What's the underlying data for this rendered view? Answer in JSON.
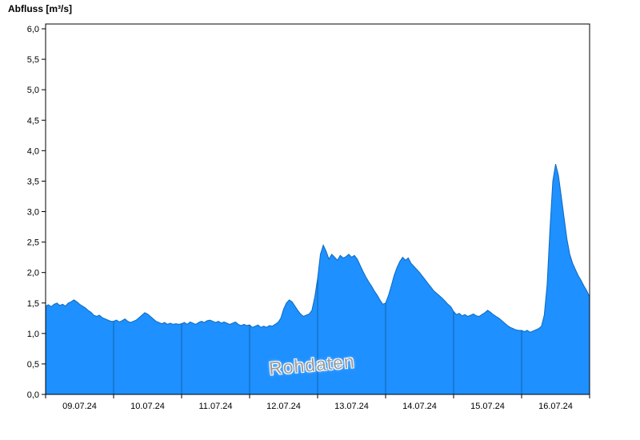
{
  "chart_data": {
    "type": "area",
    "title": "Abfluss [m³/s]",
    "ylabel": "Abfluss [m³/s]",
    "xlabel": "",
    "ylim": [
      0,
      6
    ],
    "y_tick_step": 0.5,
    "y_tick_labels": [
      "0,0",
      "0,5",
      "1,0",
      "1,5",
      "2,0",
      "2,5",
      "3,0",
      "3,5",
      "4,0",
      "4,5",
      "5,0",
      "5,5",
      "6,0"
    ],
    "x_tick_labels": [
      "09.07.24",
      "10.07.24",
      "11.07.24",
      "12.07.24",
      "13.07.24",
      "14.07.24",
      "15.07.24",
      "16.07.24"
    ],
    "x_unit": "hours",
    "grid": "vertical-day-boundaries-inside-area-only",
    "legend": "none",
    "watermark": "Rohdaten",
    "colors": {
      "fill": "#1E90FF",
      "stroke": "#0d6bbf",
      "grid": "#0f63ad",
      "axis": "#000000"
    },
    "series": [
      {
        "name": "Rohdaten",
        "values": [
          1.45,
          1.47,
          1.44,
          1.48,
          1.5,
          1.46,
          1.48,
          1.45,
          1.5,
          1.52,
          1.55,
          1.52,
          1.48,
          1.45,
          1.42,
          1.38,
          1.35,
          1.3,
          1.28,
          1.3,
          1.26,
          1.24,
          1.22,
          1.2,
          1.2,
          1.22,
          1.19,
          1.21,
          1.24,
          1.2,
          1.18,
          1.2,
          1.22,
          1.26,
          1.3,
          1.34,
          1.32,
          1.28,
          1.24,
          1.2,
          1.18,
          1.16,
          1.18,
          1.15,
          1.17,
          1.15,
          1.16,
          1.15,
          1.16,
          1.18,
          1.15,
          1.19,
          1.17,
          1.15,
          1.18,
          1.2,
          1.18,
          1.21,
          1.22,
          1.2,
          1.18,
          1.2,
          1.17,
          1.19,
          1.17,
          1.15,
          1.17,
          1.19,
          1.15,
          1.13,
          1.15,
          1.13,
          1.14,
          1.1,
          1.12,
          1.14,
          1.1,
          1.12,
          1.1,
          1.13,
          1.12,
          1.15,
          1.18,
          1.25,
          1.4,
          1.5,
          1.55,
          1.52,
          1.45,
          1.38,
          1.32,
          1.28,
          1.3,
          1.32,
          1.38,
          1.6,
          1.9,
          2.3,
          2.45,
          2.35,
          2.22,
          2.3,
          2.25,
          2.2,
          2.28,
          2.24,
          2.26,
          2.3,
          2.25,
          2.28,
          2.22,
          2.12,
          2.02,
          1.93,
          1.85,
          1.78,
          1.7,
          1.63,
          1.55,
          1.48,
          1.5,
          1.62,
          1.78,
          1.95,
          2.08,
          2.18,
          2.25,
          2.2,
          2.24,
          2.15,
          2.1,
          2.05,
          2.0,
          1.94,
          1.88,
          1.82,
          1.76,
          1.7,
          1.66,
          1.62,
          1.58,
          1.53,
          1.48,
          1.44,
          1.36,
          1.31,
          1.33,
          1.29,
          1.31,
          1.28,
          1.3,
          1.32,
          1.29,
          1.28,
          1.31,
          1.34,
          1.38,
          1.35,
          1.31,
          1.28,
          1.25,
          1.21,
          1.17,
          1.13,
          1.1,
          1.08,
          1.06,
          1.05,
          1.05,
          1.03,
          1.05,
          1.02,
          1.04,
          1.06,
          1.08,
          1.12,
          1.3,
          1.8,
          2.7,
          3.5,
          3.78,
          3.6,
          3.25,
          2.9,
          2.55,
          2.3,
          2.15,
          2.05,
          1.95,
          1.87,
          1.78,
          1.7,
          1.6
        ]
      }
    ]
  }
}
